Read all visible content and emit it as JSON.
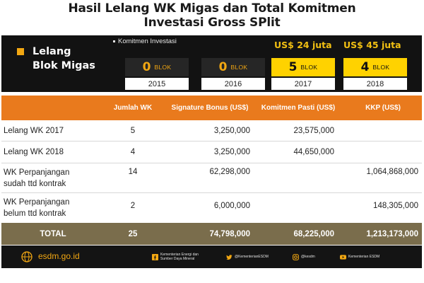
{
  "title": {
    "line1": "Hasil Lelang WK Migas dan Total Komitmen",
    "line2": "Investasi Gross SPlit"
  },
  "band": {
    "label_line1": "Lelang",
    "label_line2": "Blok Migas",
    "legend": "Komitmen Investasi",
    "years": [
      {
        "year": "2015",
        "count": "0",
        "unit": "BLOK",
        "commitment": ""
      },
      {
        "year": "2016",
        "count": "0",
        "unit": "BLOK",
        "commitment": ""
      },
      {
        "year": "2017",
        "count": "5",
        "unit": "BLOK",
        "commitment": "US$ 24 juta"
      },
      {
        "year": "2018",
        "count": "4",
        "unit": "BLOK",
        "commitment": "US$ 45 juta"
      }
    ]
  },
  "table": {
    "headers": {
      "name": "",
      "jumlah": "Jumlah WK",
      "signature": "Signature Bonus (US$)",
      "komitmen": "Komitmen Pasti (US$)",
      "kkp": "KKP (US$)"
    },
    "rows": [
      {
        "name_line1": "Lelang WK 2017",
        "name_line2": "",
        "jumlah": "5",
        "signature": "3,250,000",
        "komitmen": "23,575,000",
        "kkp": ""
      },
      {
        "name_line1": "Lelang WK 2018",
        "name_line2": "",
        "jumlah": "4",
        "signature": "3,250,000",
        "komitmen": "44,650,000",
        "kkp": ""
      },
      {
        "name_line1": "WK Perpanjangan",
        "name_line2": "sudah ttd kontrak",
        "jumlah": "14",
        "signature": "62,298,000",
        "komitmen": "",
        "kkp": "1,064,868,000"
      },
      {
        "name_line1": "WK Perpanjangan",
        "name_line2": "belum ttd kontrak",
        "jumlah": "2",
        "signature": "6,000,000",
        "komitmen": "",
        "kkp": "148,305,000"
      }
    ],
    "total": {
      "name": "TOTAL",
      "jumlah": "25",
      "signature": "74,798,000",
      "komitmen": "68,225,000",
      "kkp": "1,213,173,000"
    }
  },
  "footer": {
    "site": "esdm.go.id",
    "facebook": "Kementerian Energi dan Sumber Daya Mineral",
    "twitter": "@KementerianESDM",
    "instagram": "@kesdm",
    "youtube": "Kementerian ESDM"
  },
  "colors": {
    "accent": "#f2a712",
    "header_orange": "#e97a1d",
    "total_bar": "#7a6d4c",
    "highlight_yellow": "#ffd200"
  }
}
